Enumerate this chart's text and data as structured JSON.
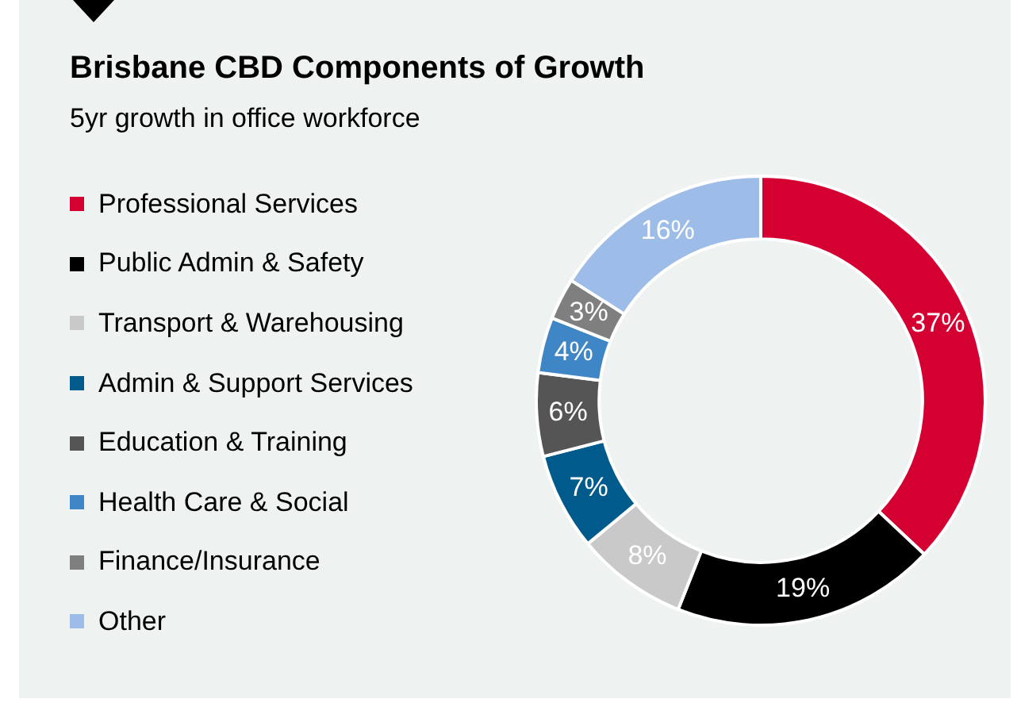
{
  "chart_data": {
    "type": "donut",
    "title": "Brisbane CBD Components of Growth",
    "subtitle": "5yr growth in office workforce",
    "categories": [
      "Professional Services",
      "Public Admin & Safety",
      "Transport & Warehousing",
      "Admin & Support Services",
      "Education & Training",
      "Health Care & Social",
      "Finance/Insurance",
      "Other"
    ],
    "values": [
      37,
      19,
      8,
      7,
      6,
      4,
      3,
      16
    ],
    "colors": [
      "#d50032",
      "#000000",
      "#c9c9c9",
      "#005b8c",
      "#555555",
      "#3f86c6",
      "#7f7f7f",
      "#9dbde8"
    ],
    "value_labels": [
      "37%",
      "19%",
      "8%",
      "7%",
      "6%",
      "4%",
      "3%",
      "16%"
    ],
    "legend": "left"
  }
}
